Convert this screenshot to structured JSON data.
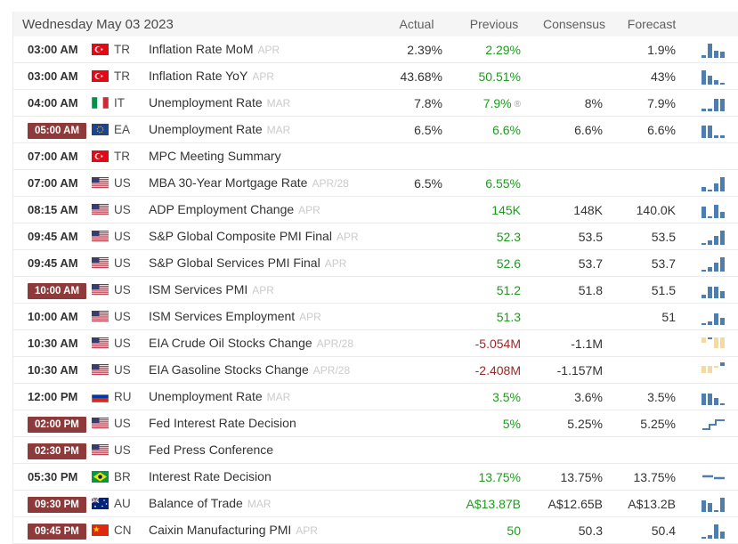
{
  "header": {
    "date": "Wednesday May 03 2023",
    "columns": [
      "Actual",
      "Previous",
      "Consensus",
      "Forecast"
    ]
  },
  "legend": {
    "revised_marker": "®"
  },
  "colors": {
    "accent_green": "#1e9b1e",
    "negative_red": "#9b2727",
    "badge_bg": "#8e3a3a",
    "badge_text": "#ffffff",
    "bar_blue": "#4d7eaf",
    "bar_tan": "#f3d9a2"
  },
  "rows": [
    {
      "time": "03:00 AM",
      "highlighted": false,
      "country": "TR",
      "event": "Inflation Rate MoM",
      "period": "APR",
      "actual": "2.39%",
      "previous": "2.29%",
      "previous_negative": false,
      "revised": false,
      "consensus": "",
      "forecast": "1.9%",
      "icon": {
        "type": "bars",
        "anchor": "bottom",
        "bars": [
          {
            "h": 3
          },
          {
            "h": 16
          },
          {
            "h": 8
          },
          {
            "h": 7
          }
        ]
      }
    },
    {
      "time": "03:00 AM",
      "highlighted": false,
      "country": "TR",
      "event": "Inflation Rate YoY",
      "period": "APR",
      "actual": "43.68%",
      "previous": "50.51%",
      "previous_negative": false,
      "revised": false,
      "consensus": "",
      "forecast": "43%",
      "icon": {
        "type": "bars",
        "anchor": "bottom",
        "bars": [
          {
            "h": 16
          },
          {
            "h": 10
          },
          {
            "h": 5
          },
          {
            "h": 2
          }
        ]
      }
    },
    {
      "time": "04:00 AM",
      "highlighted": false,
      "country": "IT",
      "event": "Unemployment Rate",
      "period": "MAR",
      "actual": "7.8%",
      "previous": "7.9%",
      "previous_negative": false,
      "revised": true,
      "consensus": "8%",
      "forecast": "7.9%",
      "icon": {
        "type": "bars",
        "anchor": "bottom",
        "bars": [
          {
            "h": 3
          },
          {
            "h": 3
          },
          {
            "h": 14
          },
          {
            "h": 14
          }
        ]
      }
    },
    {
      "time": "05:00 AM",
      "highlighted": true,
      "country": "EA",
      "event": "Unemployment Rate",
      "period": "MAR",
      "actual": "6.5%",
      "previous": "6.6%",
      "previous_negative": false,
      "revised": false,
      "consensus": "6.6%",
      "forecast": "6.6%",
      "icon": {
        "type": "bars",
        "anchor": "bottom",
        "bars": [
          {
            "h": 14
          },
          {
            "h": 14
          },
          {
            "h": 3
          },
          {
            "h": 3
          }
        ]
      }
    },
    {
      "time": "07:00 AM",
      "highlighted": false,
      "country": "TR",
      "event": "MPC Meeting Summary",
      "period": "",
      "actual": "",
      "previous": "",
      "previous_negative": false,
      "revised": false,
      "consensus": "",
      "forecast": "",
      "icon": null
    },
    {
      "time": "07:00 AM",
      "highlighted": false,
      "country": "US",
      "event": "MBA 30-Year Mortgage Rate",
      "period": "APR/28",
      "actual": "6.5%",
      "previous": "6.55%",
      "previous_negative": false,
      "revised": false,
      "consensus": "",
      "forecast": "",
      "icon": {
        "type": "bars",
        "anchor": "bottom",
        "bars": [
          {
            "h": 5
          },
          {
            "h": 2
          },
          {
            "h": 9
          },
          {
            "h": 16
          }
        ]
      }
    },
    {
      "time": "08:15 AM",
      "highlighted": false,
      "country": "US",
      "event": "ADP Employment Change",
      "period": "APR",
      "actual": "",
      "previous": "145K",
      "previous_negative": false,
      "revised": false,
      "consensus": "148K",
      "forecast": "140.0K",
      "icon": {
        "type": "bars",
        "anchor": "bottom",
        "bars": [
          {
            "h": 13
          },
          {
            "h": 2
          },
          {
            "h": 15
          },
          {
            "h": 7
          }
        ]
      }
    },
    {
      "time": "09:45 AM",
      "highlighted": false,
      "country": "US",
      "event": "S&P Global Composite PMI Final",
      "period": "APR",
      "actual": "",
      "previous": "52.3",
      "previous_negative": false,
      "revised": false,
      "consensus": "53.5",
      "forecast": "53.5",
      "icon": {
        "type": "bars",
        "anchor": "bottom",
        "bars": [
          {
            "h": 2
          },
          {
            "h": 5
          },
          {
            "h": 10
          },
          {
            "h": 16
          }
        ]
      }
    },
    {
      "time": "09:45 AM",
      "highlighted": false,
      "country": "US",
      "event": "S&P Global Services PMI Final",
      "period": "APR",
      "actual": "",
      "previous": "52.6",
      "previous_negative": false,
      "revised": false,
      "consensus": "53.7",
      "forecast": "53.7",
      "icon": {
        "type": "bars",
        "anchor": "bottom",
        "bars": [
          {
            "h": 2
          },
          {
            "h": 5
          },
          {
            "h": 10
          },
          {
            "h": 16
          }
        ]
      }
    },
    {
      "time": "10:00 AM",
      "highlighted": true,
      "country": "US",
      "event": "ISM Services PMI",
      "period": "APR",
      "actual": "",
      "previous": "51.2",
      "previous_negative": false,
      "revised": false,
      "consensus": "51.8",
      "forecast": "51.5",
      "icon": {
        "type": "bars",
        "anchor": "bottom",
        "bars": [
          {
            "h": 4
          },
          {
            "h": 13
          },
          {
            "h": 13
          },
          {
            "h": 8
          }
        ]
      }
    },
    {
      "time": "10:00 AM",
      "highlighted": false,
      "country": "US",
      "event": "ISM Services Employment",
      "period": "APR",
      "actual": "",
      "previous": "51.3",
      "previous_negative": false,
      "revised": false,
      "consensus": "",
      "forecast": "51",
      "icon": {
        "type": "bars",
        "anchor": "bottom",
        "bars": [
          {
            "h": 2
          },
          {
            "h": 4
          },
          {
            "h": 13
          },
          {
            "h": 8
          }
        ]
      }
    },
    {
      "time": "10:30 AM",
      "highlighted": false,
      "country": "US",
      "event": "EIA Crude Oil Stocks Change",
      "period": "APR/28",
      "actual": "",
      "previous": "-5.054M",
      "previous_negative": true,
      "revised": false,
      "consensus": "-1.1M",
      "forecast": "",
      "icon": {
        "type": "bars",
        "anchor": "top",
        "bars": [
          {
            "h": 6,
            "c": "tan",
            "mt": 2
          },
          {
            "h": 2,
            "c": "blue",
            "mt": 2
          },
          {
            "h": 12,
            "c": "tan",
            "mt": 2
          },
          {
            "h": 12,
            "c": "tan",
            "mt": 2
          }
        ]
      }
    },
    {
      "time": "10:30 AM",
      "highlighted": false,
      "country": "US",
      "event": "EIA Gasoline Stocks Change",
      "period": "APR/28",
      "actual": "",
      "previous": "-2.408M",
      "previous_negative": true,
      "revised": false,
      "consensus": "-1.157M",
      "forecast": "",
      "icon": {
        "type": "bars",
        "anchor": "top",
        "bars": [
          {
            "h": 8,
            "c": "tan",
            "mt": 4
          },
          {
            "h": 8,
            "c": "tan",
            "mt": 4
          },
          {
            "h": 2,
            "c": "tan",
            "mt": 4
          },
          {
            "h": 4,
            "c": "blue",
            "mt": 0
          }
        ]
      }
    },
    {
      "time": "12:00 PM",
      "highlighted": false,
      "country": "RU",
      "event": "Unemployment Rate",
      "period": "MAR",
      "actual": "",
      "previous": "3.5%",
      "previous_negative": false,
      "revised": false,
      "consensus": "3.6%",
      "forecast": "3.5%",
      "icon": {
        "type": "bars",
        "anchor": "bottom",
        "bars": [
          {
            "h": 13
          },
          {
            "h": 13
          },
          {
            "h": 8
          },
          {
            "h": 2
          }
        ]
      }
    },
    {
      "time": "02:00 PM",
      "highlighted": true,
      "country": "US",
      "event": "Fed Interest Rate Decision",
      "period": "",
      "actual": "",
      "previous": "5%",
      "previous_negative": false,
      "revised": false,
      "consensus": "5.25%",
      "forecast": "5.25%",
      "icon": {
        "type": "step"
      }
    },
    {
      "time": "02:30 PM",
      "highlighted": true,
      "country": "US",
      "event": "Fed Press Conference",
      "period": "",
      "actual": "",
      "previous": "",
      "previous_negative": false,
      "revised": false,
      "consensus": "",
      "forecast": "",
      "icon": null
    },
    {
      "time": "05:30 PM",
      "highlighted": false,
      "country": "BR",
      "event": "Interest Rate Decision",
      "period": "",
      "actual": "",
      "previous": "13.75%",
      "previous_negative": false,
      "revised": false,
      "consensus": "13.75%",
      "forecast": "13.75%",
      "icon": {
        "type": "flat"
      }
    },
    {
      "time": "09:30 PM",
      "highlighted": true,
      "country": "AU",
      "event": "Balance of Trade",
      "period": "MAR",
      "actual": "",
      "previous": "A$13.87B",
      "previous_negative": false,
      "revised": false,
      "consensus": "A$12.65B",
      "forecast": "A$13.2B",
      "icon": {
        "type": "bars",
        "anchor": "bottom",
        "bars": [
          {
            "h": 13
          },
          {
            "h": 10
          },
          {
            "h": 2
          },
          {
            "h": 16
          }
        ]
      }
    },
    {
      "time": "09:45 PM",
      "highlighted": true,
      "country": "CN",
      "event": "Caixin Manufacturing PMI",
      "period": "APR",
      "actual": "",
      "previous": "50",
      "previous_negative": false,
      "revised": false,
      "consensus": "50.3",
      "forecast": "50.4",
      "icon": {
        "type": "bars",
        "anchor": "bottom",
        "bars": [
          {
            "h": 2
          },
          {
            "h": 4
          },
          {
            "h": 16
          },
          {
            "h": 8
          }
        ]
      }
    }
  ]
}
